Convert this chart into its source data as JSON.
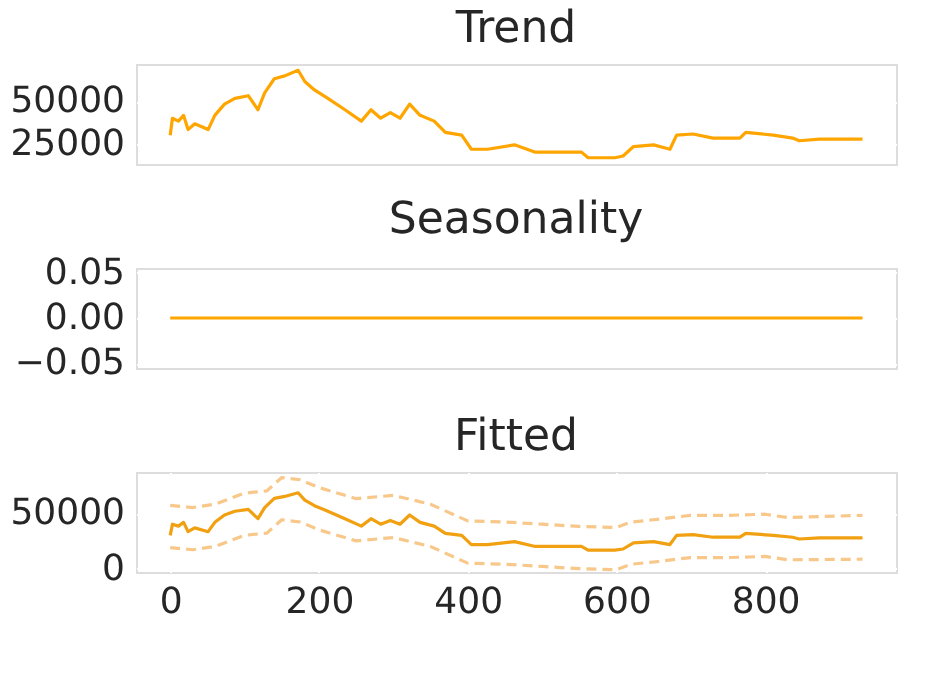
{
  "chart_data": [
    {
      "type": "line",
      "title": "Trend",
      "xlim": [
        -46,
        976
      ],
      "ylim": [
        13000,
        72000
      ],
      "yticks": [
        25000,
        50000
      ],
      "grid": "y",
      "tick_labels": "y",
      "series": [
        {
          "color": "#ffa500",
          "x": [
            0,
            3,
            11,
            18,
            24,
            33,
            51,
            60,
            73,
            87,
            105,
            118,
            127,
            140,
            154,
            172,
            181,
            194,
            212,
            235,
            257,
            270,
            283,
            296,
            309,
            322,
            336,
            355,
            370,
            392,
            405,
            427,
            463,
            491,
            518,
            553,
            562,
            598,
            609,
            623,
            650,
            672,
            681,
            703,
            730,
            766,
            774,
            811,
            837,
            846,
            873,
            931
          ],
          "values": [
            30000,
            40000,
            38300,
            41700,
            33300,
            36700,
            33300,
            41700,
            48300,
            51700,
            53300,
            45000,
            55000,
            63300,
            65000,
            68300,
            61700,
            56700,
            51700,
            45000,
            38300,
            45000,
            40000,
            43300,
            40000,
            48300,
            41700,
            38300,
            31700,
            30000,
            21700,
            21700,
            24300,
            20000,
            20000,
            20000,
            16700,
            16700,
            17700,
            23300,
            24300,
            21700,
            30000,
            30700,
            28300,
            28300,
            31700,
            30000,
            28300,
            26700,
            27700,
            27700
          ]
        }
      ]
    },
    {
      "type": "line",
      "title": "Seasonality",
      "xlim": [
        -46,
        976
      ],
      "ylim": [
        -0.055,
        0.055
      ],
      "yticks": [
        {
          "value": -0.05,
          "label": "−0.05"
        },
        {
          "value": 0,
          "label": "0.00"
        },
        {
          "value": 0.05,
          "label": "0.05"
        }
      ],
      "grid": "y",
      "tick_labels": "y",
      "series": [
        {
          "color": "#ffa500",
          "x": [
            0,
            931
          ],
          "values": [
            0,
            0
          ]
        }
      ]
    },
    {
      "type": "line",
      "title": "Fitted",
      "xlim": [
        -46,
        976
      ],
      "ylim": [
        -3000,
        87000
      ],
      "yticks": [
        0,
        50000
      ],
      "xticks": [
        0,
        200,
        400,
        600,
        800
      ],
      "grid": true,
      "series": [
        {
          "color": "#f8c88a",
          "line_style": "dashed",
          "x": [
            0,
            30,
            60,
            100,
            130,
            150,
            175,
            200,
            250,
            300,
            350,
            400,
            450,
            500,
            550,
            600,
            620,
            650,
            700,
            750,
            800,
            830,
            931
          ],
          "values": [
            57000,
            55000,
            58000,
            68000,
            70000,
            82000,
            80000,
            73000,
            63000,
            66000,
            58000,
            43000,
            42000,
            40000,
            38000,
            37000,
            42000,
            44000,
            48000,
            48000,
            49000,
            46000,
            48000
          ]
        },
        {
          "color": "#f8c88a",
          "line_style": "dashed",
          "x": [
            0,
            30,
            60,
            100,
            130,
            150,
            175,
            200,
            250,
            300,
            350,
            400,
            450,
            500,
            550,
            600,
            620,
            650,
            700,
            750,
            800,
            830,
            931
          ],
          "values": [
            19000,
            17000,
            20000,
            30000,
            32000,
            44000,
            42000,
            35000,
            25000,
            28000,
            20000,
            5000,
            4000,
            2000,
            0,
            -1000,
            4000,
            6000,
            10000,
            10000,
            11000,
            8000,
            8500
          ]
        },
        {
          "color": "#f0a010",
          "x": [
            0,
            3,
            11,
            18,
            24,
            33,
            51,
            60,
            73,
            87,
            105,
            118,
            127,
            140,
            154,
            172,
            181,
            194,
            212,
            235,
            257,
            270,
            283,
            296,
            309,
            322,
            336,
            355,
            370,
            392,
            405,
            427,
            463,
            491,
            518,
            553,
            562,
            598,
            609,
            623,
            650,
            672,
            681,
            703,
            730,
            766,
            774,
            811,
            837,
            846,
            873,
            931
          ],
          "values": [
            30000,
            40000,
            38300,
            41700,
            33300,
            36700,
            33300,
            41700,
            48300,
            51700,
            53300,
            45000,
            55000,
            63300,
            65000,
            68300,
            61700,
            56700,
            51700,
            45000,
            38300,
            45000,
            40000,
            43300,
            40000,
            48300,
            41700,
            38300,
            31700,
            30000,
            21700,
            21700,
            24300,
            20000,
            20000,
            20000,
            16700,
            16700,
            17700,
            23300,
            24300,
            21700,
            30000,
            30700,
            28300,
            28300,
            31700,
            30000,
            28300,
            26700,
            27700,
            27700
          ]
        }
      ]
    }
  ]
}
